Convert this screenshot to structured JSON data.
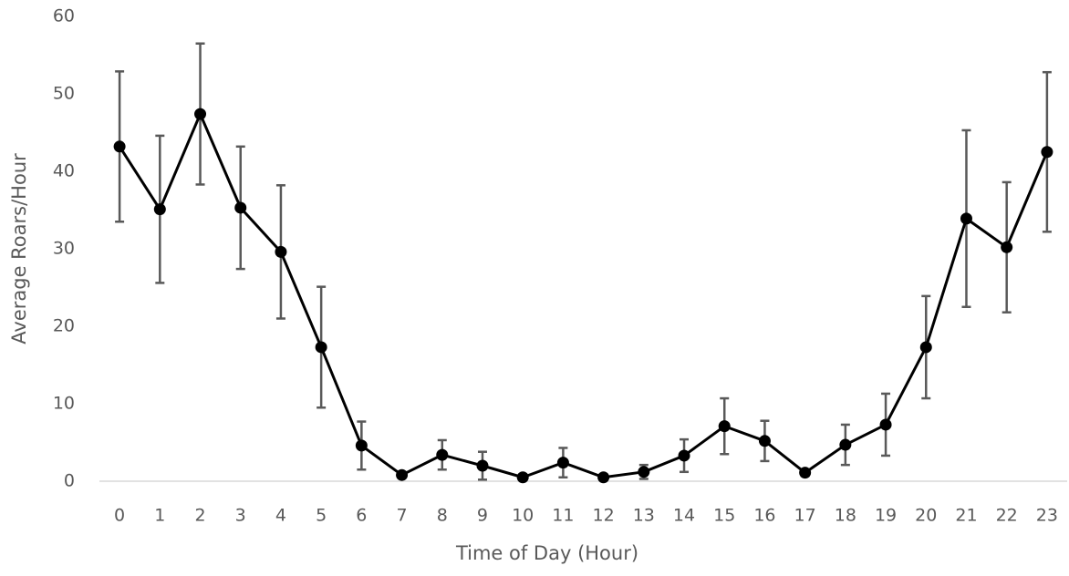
{
  "chart_data": {
    "type": "line",
    "x_label": "Time of Day (Hour)",
    "y_label": "Average Roars/Hour",
    "categories": [
      "0",
      "1",
      "2",
      "3",
      "4",
      "5",
      "6",
      "7",
      "8",
      "9",
      "10",
      "11",
      "12",
      "13",
      "14",
      "15",
      "16",
      "17",
      "18",
      "19",
      "20",
      "21",
      "22",
      "23"
    ],
    "series": [
      {
        "color": "#000000",
        "values": [
          43.2,
          35.1,
          47.4,
          35.3,
          29.6,
          17.3,
          4.6,
          0.8,
          3.4,
          2.0,
          0.5,
          2.4,
          0.5,
          1.2,
          3.3,
          7.1,
          5.2,
          1.1,
          4.7,
          7.3,
          17.3,
          33.9,
          30.2,
          42.5
        ],
        "errors": [
          9.7,
          9.5,
          9.1,
          7.9,
          8.6,
          7.8,
          3.1,
          0.3,
          1.9,
          1.8,
          0.3,
          1.9,
          0.3,
          0.9,
          2.1,
          3.6,
          2.6,
          0.4,
          2.6,
          4.0,
          6.6,
          11.4,
          8.4,
          10.3
        ]
      }
    ],
    "error_color": "#595959",
    "ylim": [
      0,
      60
    ],
    "yticks": [
      0,
      10,
      20,
      30,
      40,
      50,
      60
    ],
    "grid": false
  }
}
